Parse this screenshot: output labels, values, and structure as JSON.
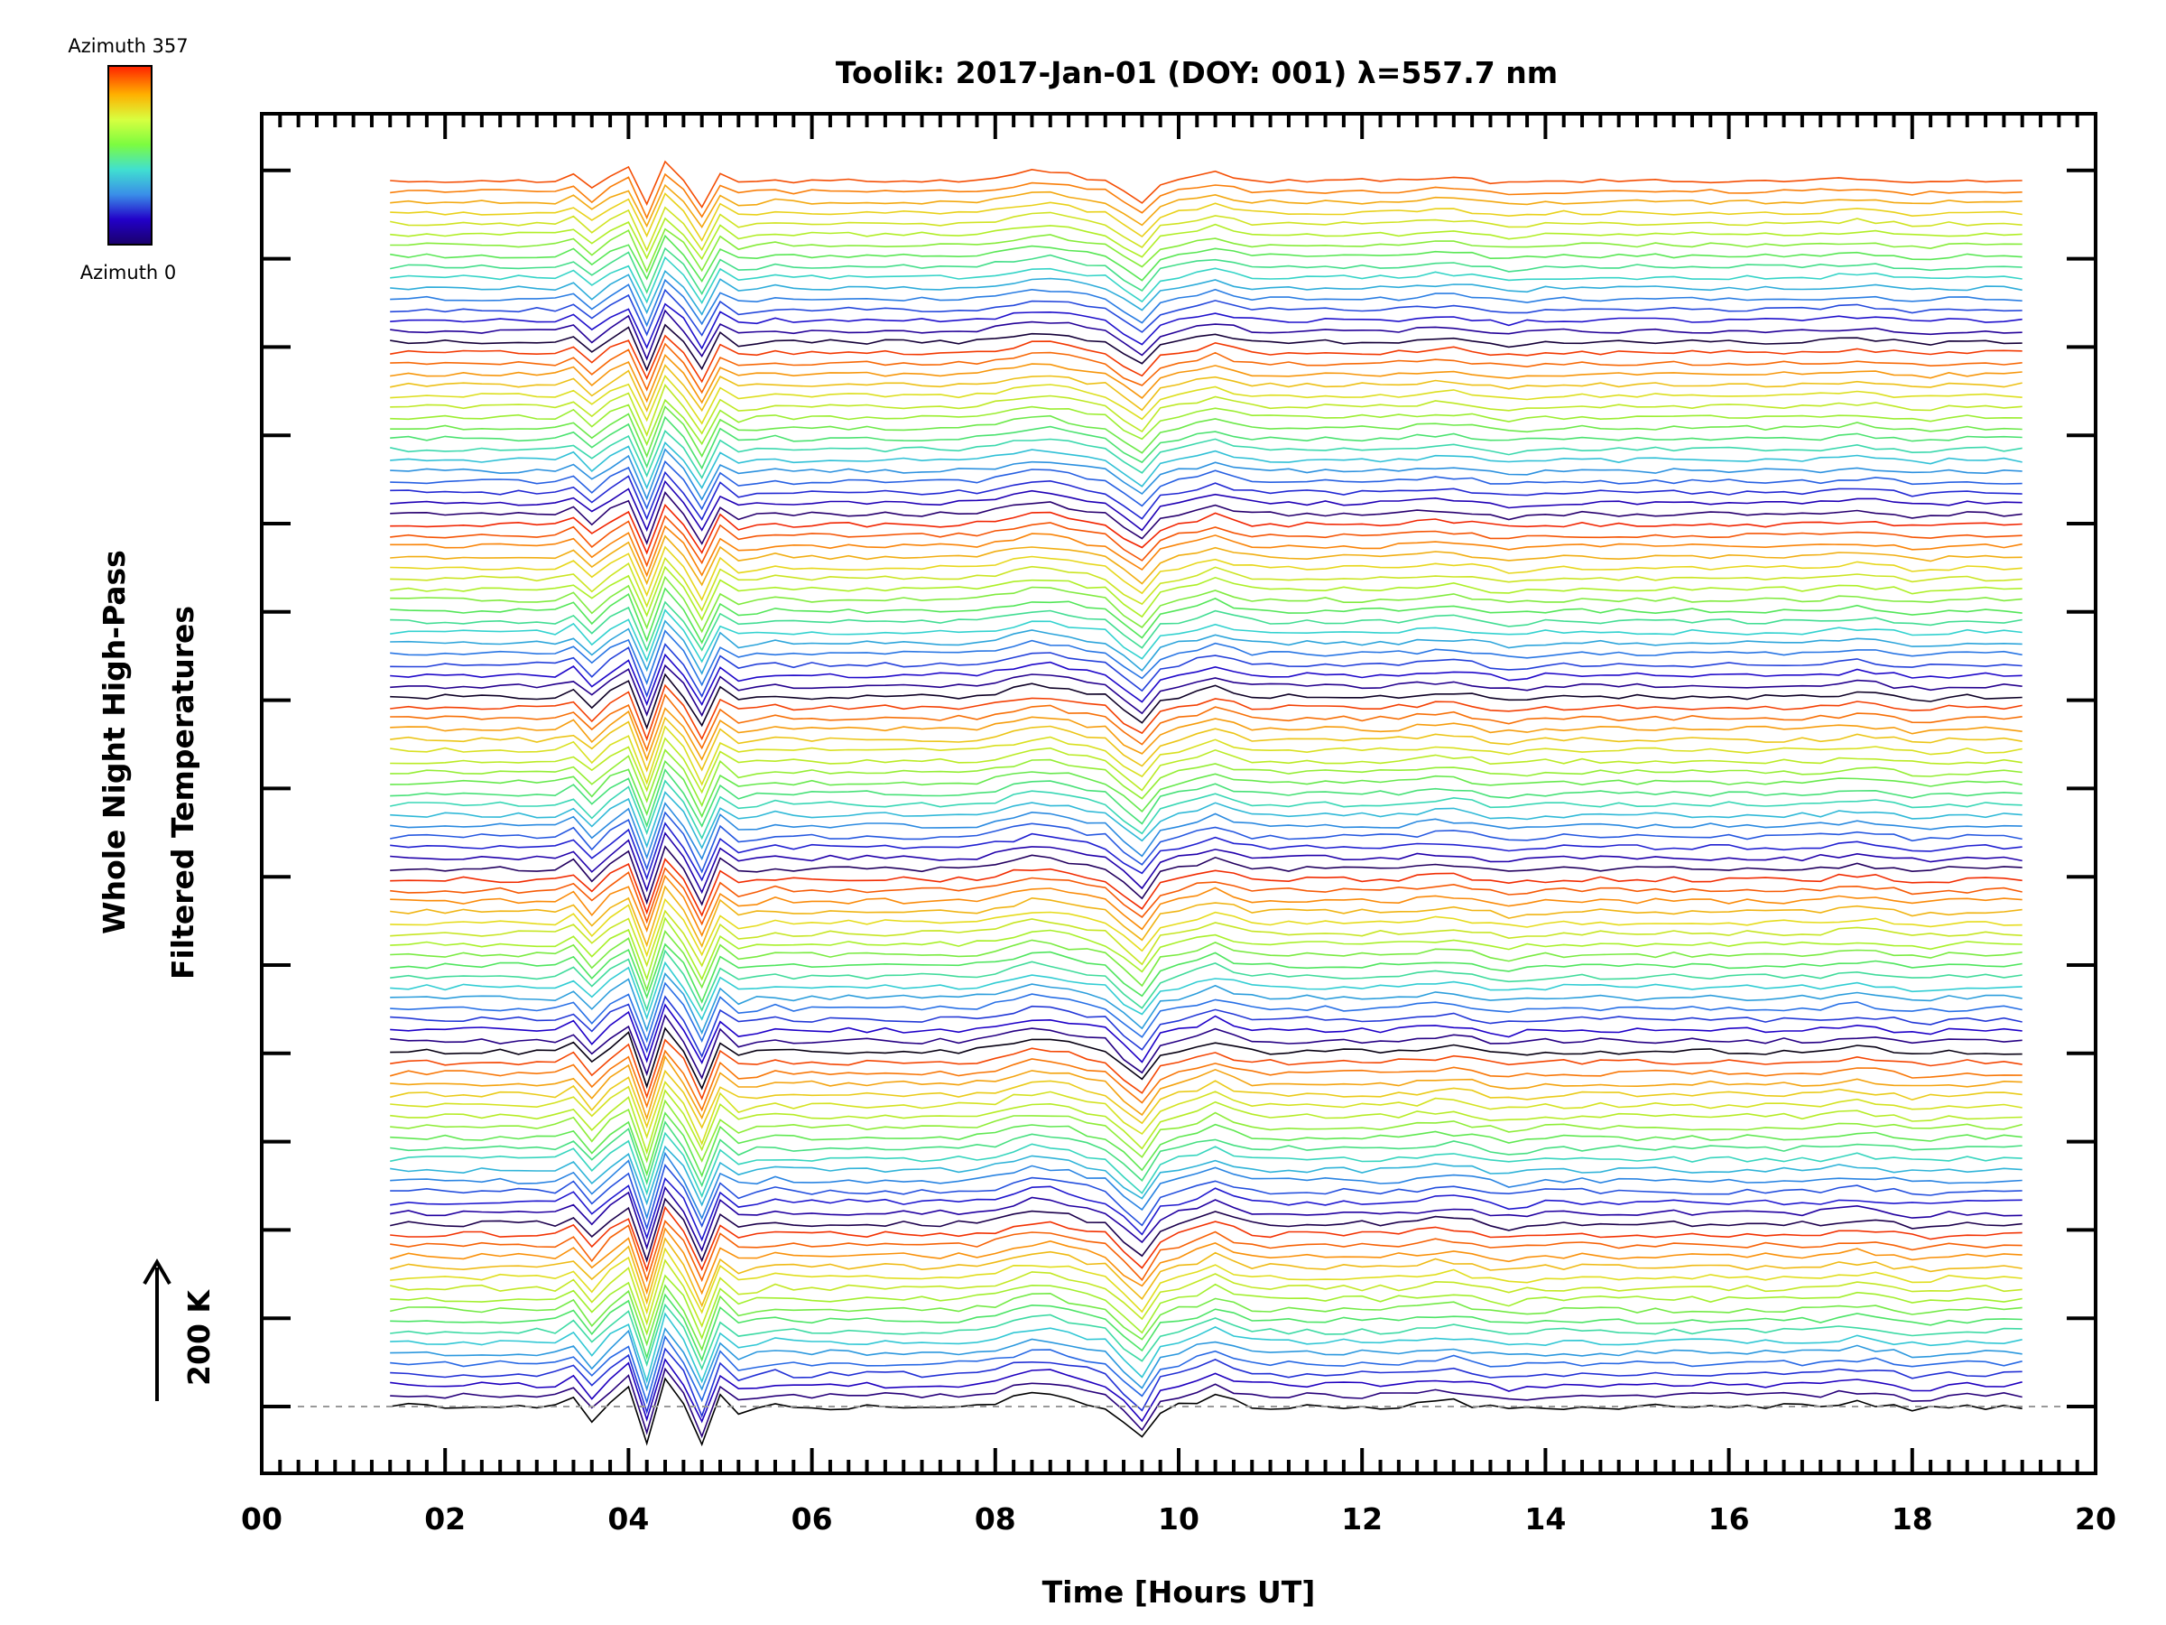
{
  "chart_data": {
    "type": "line",
    "title": "Toolik: 2017-Jan-01 (DOY: 001) λ=557.7 nm",
    "xlabel": "Time [Hours UT]",
    "ylabel_lines": [
      "Whole Night High-Pass",
      "Filtered Temperatures"
    ],
    "xlim": [
      0,
      20
    ],
    "x_ticks": [
      "00",
      "02",
      "04",
      "06",
      "08",
      "10",
      "12",
      "14",
      "16",
      "18",
      "20"
    ],
    "y_ticks_visible_labels": false,
    "scale_bar_label": "200 K",
    "baseline": "dashed",
    "colorbar": {
      "top_label": "Azimuth 357",
      "bottom_label": "Azimuth 0",
      "colormap": "rainbow"
    },
    "series_count": 115,
    "series_offset_groups": 7,
    "series_start_hour": 1.4,
    "series_end_hour": 19.2,
    "series_sample_count": 90,
    "features": {
      "wave_packet_hours": [
        3.6,
        5.2
      ],
      "peak_hour": 8.5,
      "dip_hour": 9.55,
      "peak2_hour": 10.4
    }
  }
}
